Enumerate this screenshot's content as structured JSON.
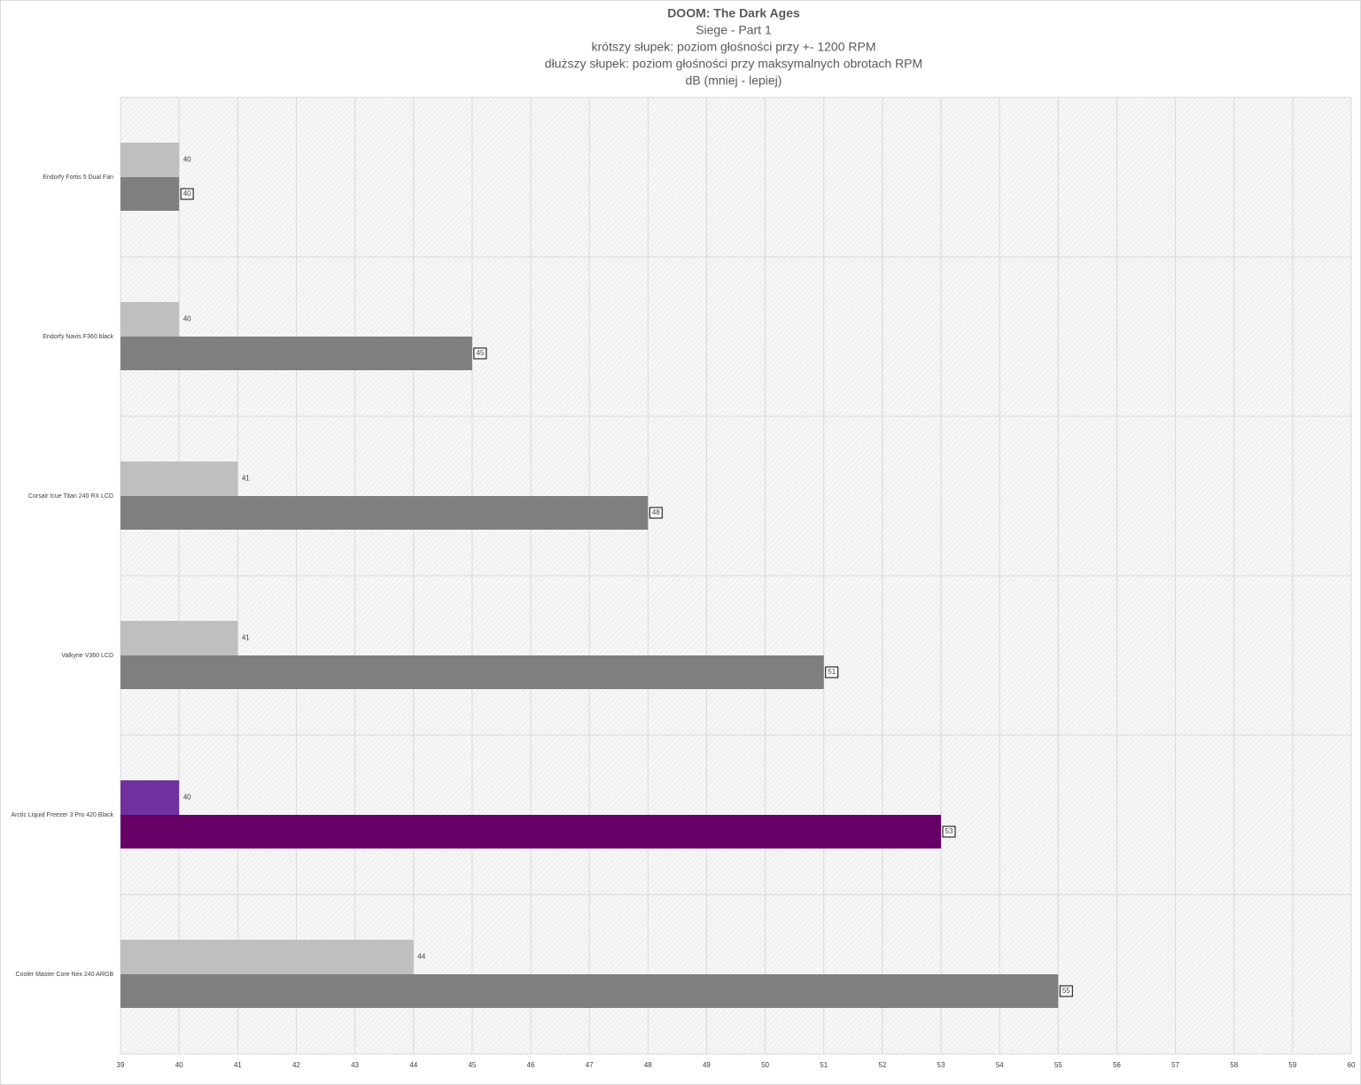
{
  "chart_data": {
    "type": "hbar",
    "title": "DOOM: The Dark Ages",
    "subtitle": [
      "Siege - Part 1",
      "krótszy słupek: poziom głośności przy +- 1200 RPM",
      "dłuższy słupek: poziom głośności przy maksymalnych obrotach RPM",
      "dB (mniej - lepiej)"
    ],
    "categories": [
      "Endorfy Fortis 5 Dual Fan",
      "Endorfy Navis F360 black",
      "Corsair Icue Titan 240 RX LCD",
      "Valkyrie V360 LCD",
      "Arctic Liquid Freezer 3 Pro 420 Black",
      "Cooler Master Core Nex 240 ARGB"
    ],
    "series": [
      {
        "values": [
          40,
          40,
          41,
          41,
          40,
          44
        ],
        "colors": [
          "#bfbfbf",
          "#bfbfbf",
          "#bfbfbf",
          "#bfbfbf",
          "#7030a0",
          "#bfbfbf"
        ]
      },
      {
        "values": [
          40,
          45,
          48,
          51,
          53,
          55
        ],
        "colors": [
          "#7f7f7f",
          "#7f7f7f",
          "#7f7f7f",
          "#7f7f7f",
          "#660066",
          "#7f7f7f"
        ]
      }
    ],
    "xlim": [
      39,
      60
    ],
    "xticks": [
      39,
      40,
      41,
      42,
      43,
      44,
      45,
      46,
      47,
      48,
      49,
      50,
      51,
      52,
      53,
      54,
      55,
      56,
      57,
      58,
      59,
      60
    ],
    "grid": true
  }
}
